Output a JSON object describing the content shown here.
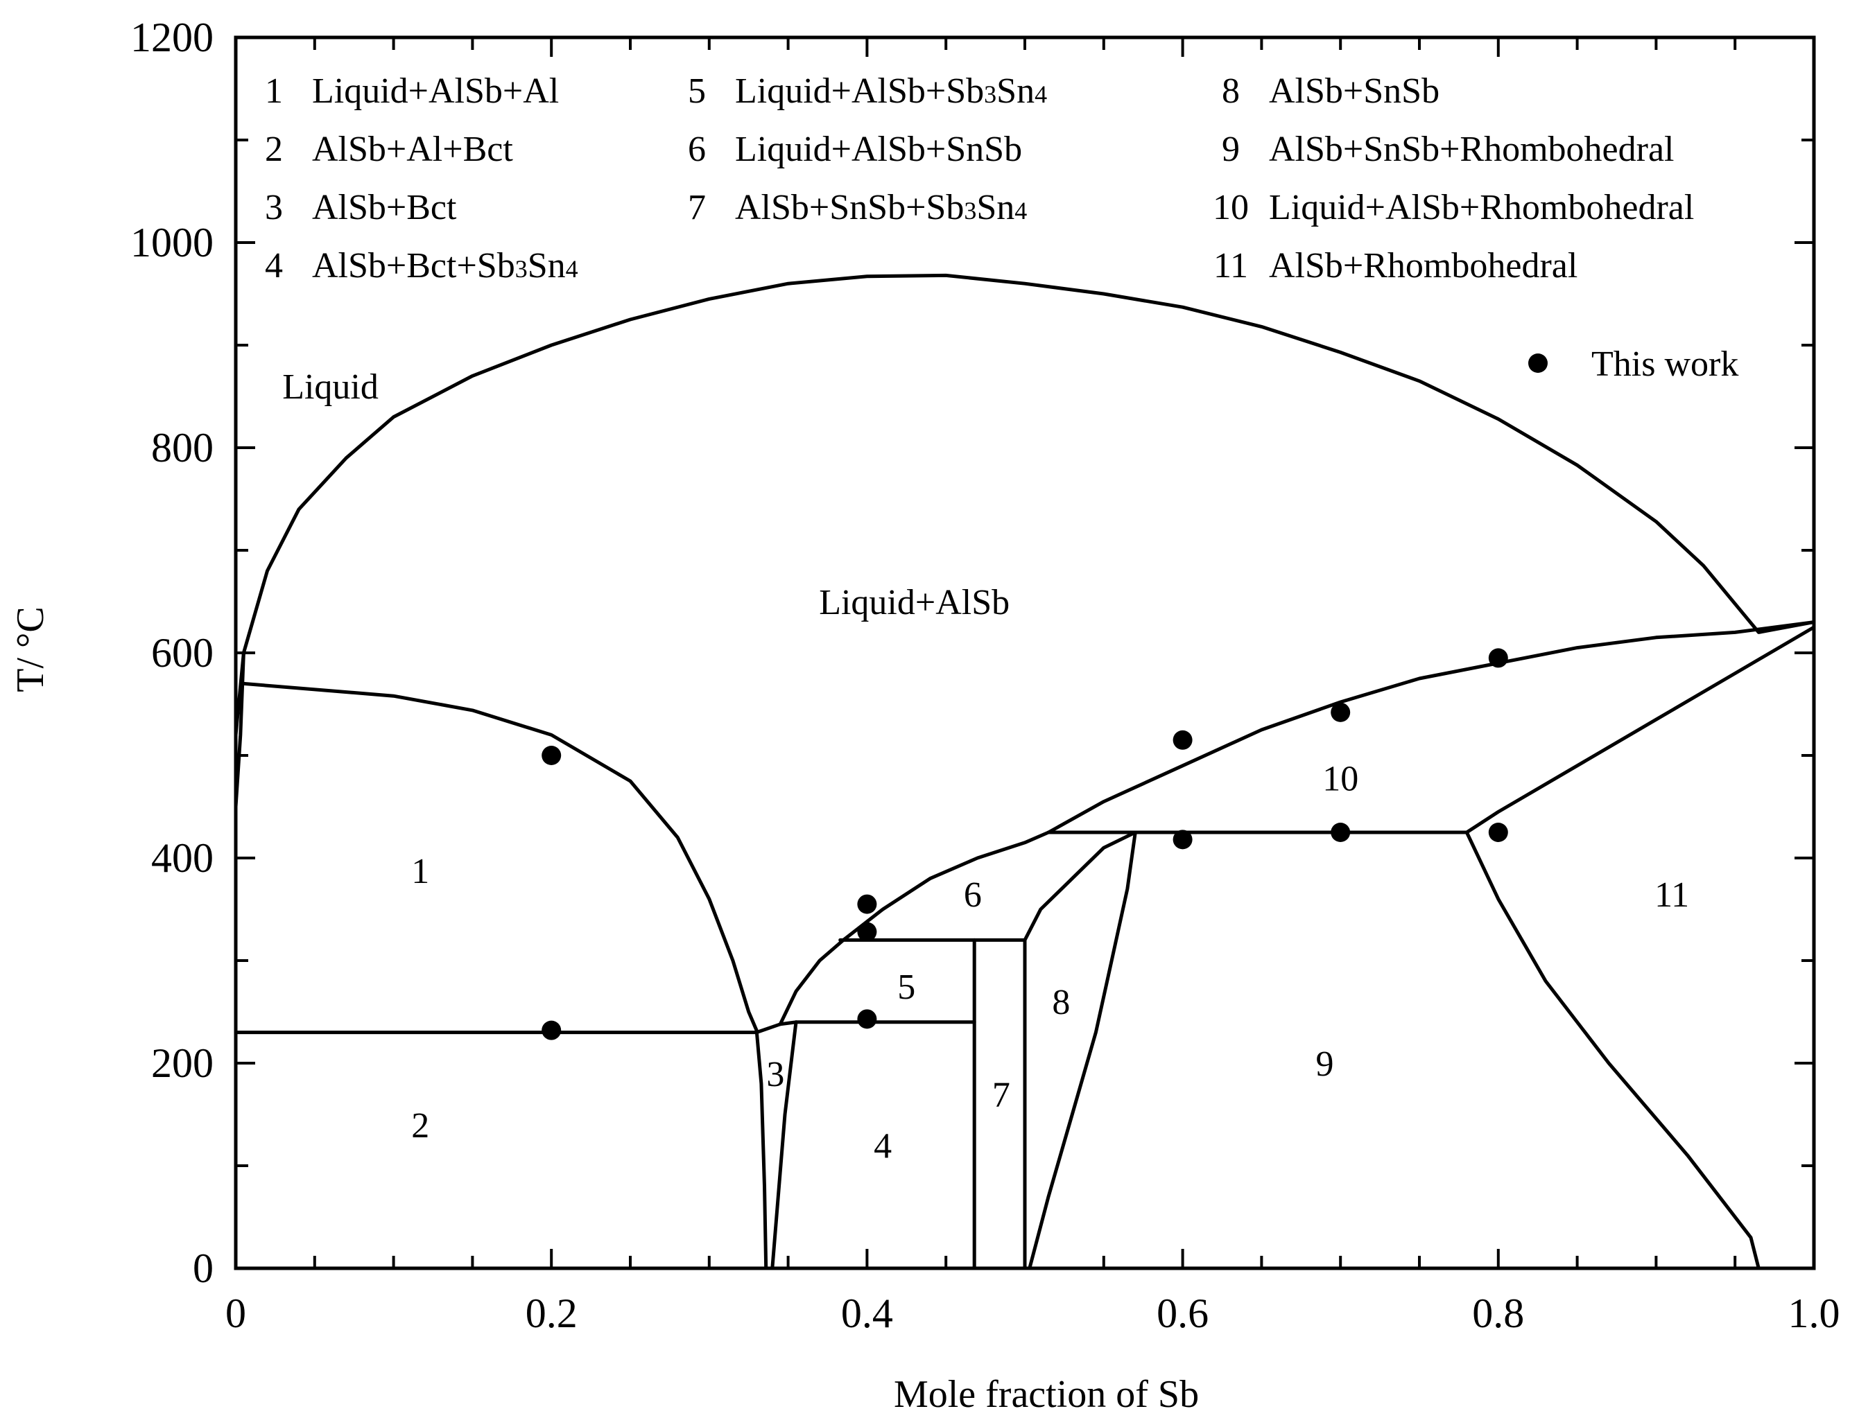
{
  "chart_data": {
    "type": "phase-diagram",
    "xlabel": "Mole fraction of Sb",
    "ylabel": "T/ °C",
    "xlim": [
      0,
      1.0
    ],
    "ylim": [
      0,
      1200
    ],
    "x_ticks": [
      0,
      0.2,
      0.4,
      0.6,
      0.8,
      1.0
    ],
    "x_tick_labels": [
      "0",
      "0.2",
      "0.4",
      "0.6",
      "0.8",
      "1.0"
    ],
    "y_ticks": [
      0,
      200,
      400,
      600,
      800,
      1000,
      1200
    ],
    "y_tick_labels": [
      "0",
      "200",
      "400",
      "600",
      "800",
      "1000",
      "1200"
    ],
    "phase_key": [
      {
        "num": "1",
        "parts": [
          [
            "Liquid+AlSb+Al",
            ""
          ]
        ]
      },
      {
        "num": "2",
        "parts": [
          [
            "AlSb+Al+Bct",
            ""
          ]
        ]
      },
      {
        "num": "3",
        "parts": [
          [
            "AlSb+Bct",
            ""
          ]
        ]
      },
      {
        "num": "4",
        "parts": [
          [
            "AlSb+Bct+Sb",
            ""
          ],
          [
            "3",
            "sub"
          ],
          [
            "Sn",
            ""
          ],
          [
            "4",
            "sub"
          ]
        ]
      },
      {
        "num": "5",
        "parts": [
          [
            "Liquid+AlSb+Sb",
            ""
          ],
          [
            "3",
            "sub"
          ],
          [
            "Sn",
            ""
          ],
          [
            "4",
            "sub"
          ]
        ]
      },
      {
        "num": "6",
        "parts": [
          [
            "Liquid+AlSb+SnSb",
            ""
          ]
        ]
      },
      {
        "num": "7",
        "parts": [
          [
            "AlSb+SnSb+Sb",
            ""
          ],
          [
            "3",
            "sub"
          ],
          [
            "Sn",
            ""
          ],
          [
            "4",
            "sub"
          ]
        ]
      },
      {
        "num": "8",
        "parts": [
          [
            "AlSb+SnSb",
            ""
          ]
        ]
      },
      {
        "num": "9",
        "parts": [
          [
            "AlSb+SnSb+Rhombohedral",
            ""
          ]
        ]
      },
      {
        "num": "10",
        "parts": [
          [
            "Liquid+AlSb+Rhombohedral",
            ""
          ]
        ]
      },
      {
        "num": "11",
        "parts": [
          [
            "AlSb+Rhombohedral",
            ""
          ]
        ]
      }
    ],
    "experimental_series": {
      "name": "This work",
      "points": [
        {
          "x": 0.2,
          "y": 500
        },
        {
          "x": 0.2,
          "y": 232
        },
        {
          "x": 0.4,
          "y": 355
        },
        {
          "x": 0.4,
          "y": 328
        },
        {
          "x": 0.4,
          "y": 243
        },
        {
          "x": 0.6,
          "y": 515
        },
        {
          "x": 0.6,
          "y": 418
        },
        {
          "x": 0.7,
          "y": 542
        },
        {
          "x": 0.7,
          "y": 425
        },
        {
          "x": 0.8,
          "y": 595
        },
        {
          "x": 0.8,
          "y": 425
        }
      ]
    },
    "phase_boundaries": [
      {
        "name": "liquidus",
        "points": [
          [
            0,
            520
          ],
          [
            0.005,
            600
          ],
          [
            0.02,
            680
          ],
          [
            0.04,
            740
          ],
          [
            0.07,
            790
          ],
          [
            0.1,
            830
          ],
          [
            0.15,
            870
          ],
          [
            0.2,
            900
          ],
          [
            0.25,
            925
          ],
          [
            0.3,
            945
          ],
          [
            0.35,
            960
          ],
          [
            0.4,
            967
          ],
          [
            0.45,
            968
          ],
          [
            0.5,
            960
          ],
          [
            0.55,
            950
          ],
          [
            0.6,
            937
          ],
          [
            0.65,
            918
          ],
          [
            0.7,
            893
          ],
          [
            0.75,
            865
          ],
          [
            0.8,
            828
          ],
          [
            0.85,
            783
          ],
          [
            0.9,
            728
          ],
          [
            0.93,
            685
          ],
          [
            0.965,
            620
          ],
          [
            1.0,
            630
          ]
        ]
      },
      {
        "name": "al-side-liquidus",
        "points": [
          [
            0,
            450
          ],
          [
            0.003,
            520
          ],
          [
            0.005,
            600
          ]
        ]
      },
      {
        "name": "al-phase-boundary",
        "points": [
          [
            0.005,
            570
          ],
          [
            0.1,
            558
          ],
          [
            0.15,
            544
          ],
          [
            0.2,
            520
          ],
          [
            0.25,
            475
          ],
          [
            0.28,
            420
          ],
          [
            0.3,
            360
          ],
          [
            0.315,
            300
          ],
          [
            0.325,
            250
          ],
          [
            0.33,
            232
          ],
          [
            0.333,
            180
          ],
          [
            0.335,
            80
          ],
          [
            0.336,
            0
          ]
        ]
      },
      {
        "name": "eutectic-232",
        "points": [
          [
            0,
            230
          ],
          [
            0.33,
            230
          ]
        ]
      },
      {
        "name": "bct-boundary",
        "points": [
          [
            0.355,
            240
          ],
          [
            0.348,
            150
          ],
          [
            0.34,
            0
          ]
        ]
      },
      {
        "name": "liquidus-sn-side",
        "points": [
          [
            0.33,
            230
          ],
          [
            0.345,
            238
          ],
          [
            0.355,
            270
          ],
          [
            0.37,
            300
          ],
          [
            0.385,
            320
          ],
          [
            0.41,
            350
          ],
          [
            0.44,
            380
          ],
          [
            0.47,
            400
          ],
          [
            0.5,
            415
          ],
          [
            0.515,
            425
          ]
        ]
      },
      {
        "name": "bct-upper",
        "points": [
          [
            0.345,
            238
          ],
          [
            0.355,
            240
          ]
        ]
      },
      {
        "name": "peritectic-240",
        "points": [
          [
            0.355,
            240
          ],
          [
            0.468,
            240
          ]
        ]
      },
      {
        "name": "peritectic-320",
        "points": [
          [
            0.383,
            320
          ],
          [
            0.5,
            320
          ]
        ]
      },
      {
        "name": "sb3sn4-vertical",
        "points": [
          [
            0.468,
            320
          ],
          [
            0.468,
            0
          ]
        ]
      },
      {
        "name": "snsb-left",
        "points": [
          [
            0.5,
            320
          ],
          [
            0.5,
            0
          ]
        ]
      },
      {
        "name": "snsb-top",
        "points": [
          [
            0.5,
            320
          ],
          [
            0.51,
            350
          ],
          [
            0.53,
            380
          ],
          [
            0.55,
            410
          ],
          [
            0.57,
            425
          ]
        ]
      },
      {
        "name": "peritectic-425",
        "points": [
          [
            0.515,
            425
          ],
          [
            0.78,
            425
          ]
        ]
      },
      {
        "name": "snsb-right",
        "points": [
          [
            0.57,
            425
          ],
          [
            0.565,
            370
          ],
          [
            0.555,
            300
          ],
          [
            0.545,
            230
          ],
          [
            0.53,
            150
          ],
          [
            0.515,
            70
          ],
          [
            0.503,
            0
          ]
        ]
      },
      {
        "name": "rhomb-liquidus",
        "points": [
          [
            0.515,
            425
          ],
          [
            0.55,
            455
          ],
          [
            0.6,
            490
          ],
          [
            0.65,
            525
          ],
          [
            0.7,
            552
          ],
          [
            0.75,
            575
          ],
          [
            0.8,
            590
          ],
          [
            0.85,
            605
          ],
          [
            0.9,
            615
          ],
          [
            0.95,
            620
          ],
          [
            1.0,
            630
          ]
        ]
      },
      {
        "name": "rhomb-solvus-upper",
        "points": [
          [
            0.78,
            425
          ],
          [
            0.8,
            445
          ],
          [
            0.85,
            490
          ],
          [
            0.9,
            535
          ],
          [
            0.95,
            580
          ],
          [
            1.0,
            625
          ]
        ]
      },
      {
        "name": "rhomb-solvus-lower",
        "points": [
          [
            0.78,
            425
          ],
          [
            0.8,
            360
          ],
          [
            0.83,
            280
          ],
          [
            0.87,
            200
          ],
          [
            0.92,
            110
          ],
          [
            0.96,
            30
          ],
          [
            0.965,
            0
          ]
        ]
      }
    ],
    "region_labels": [
      {
        "text": "Liquid",
        "x": 0.06,
        "y": 860
      },
      {
        "text": "Liquid+AlSb",
        "x": 0.43,
        "y": 650
      },
      {
        "text": "1",
        "x": 0.117,
        "y": 388
      },
      {
        "text": "2",
        "x": 0.117,
        "y": 140
      },
      {
        "text": "3",
        "x": 0.342,
        "y": 190
      },
      {
        "text": "4",
        "x": 0.41,
        "y": 120
      },
      {
        "text": "5",
        "x": 0.425,
        "y": 275
      },
      {
        "text": "6",
        "x": 0.467,
        "y": 365
      },
      {
        "text": "7",
        "x": 0.485,
        "y": 170
      },
      {
        "text": "8",
        "x": 0.523,
        "y": 260
      },
      {
        "text": "9",
        "x": 0.69,
        "y": 200
      },
      {
        "text": "10",
        "x": 0.7,
        "y": 478
      },
      {
        "text": "11",
        "x": 0.91,
        "y": 365
      }
    ]
  }
}
